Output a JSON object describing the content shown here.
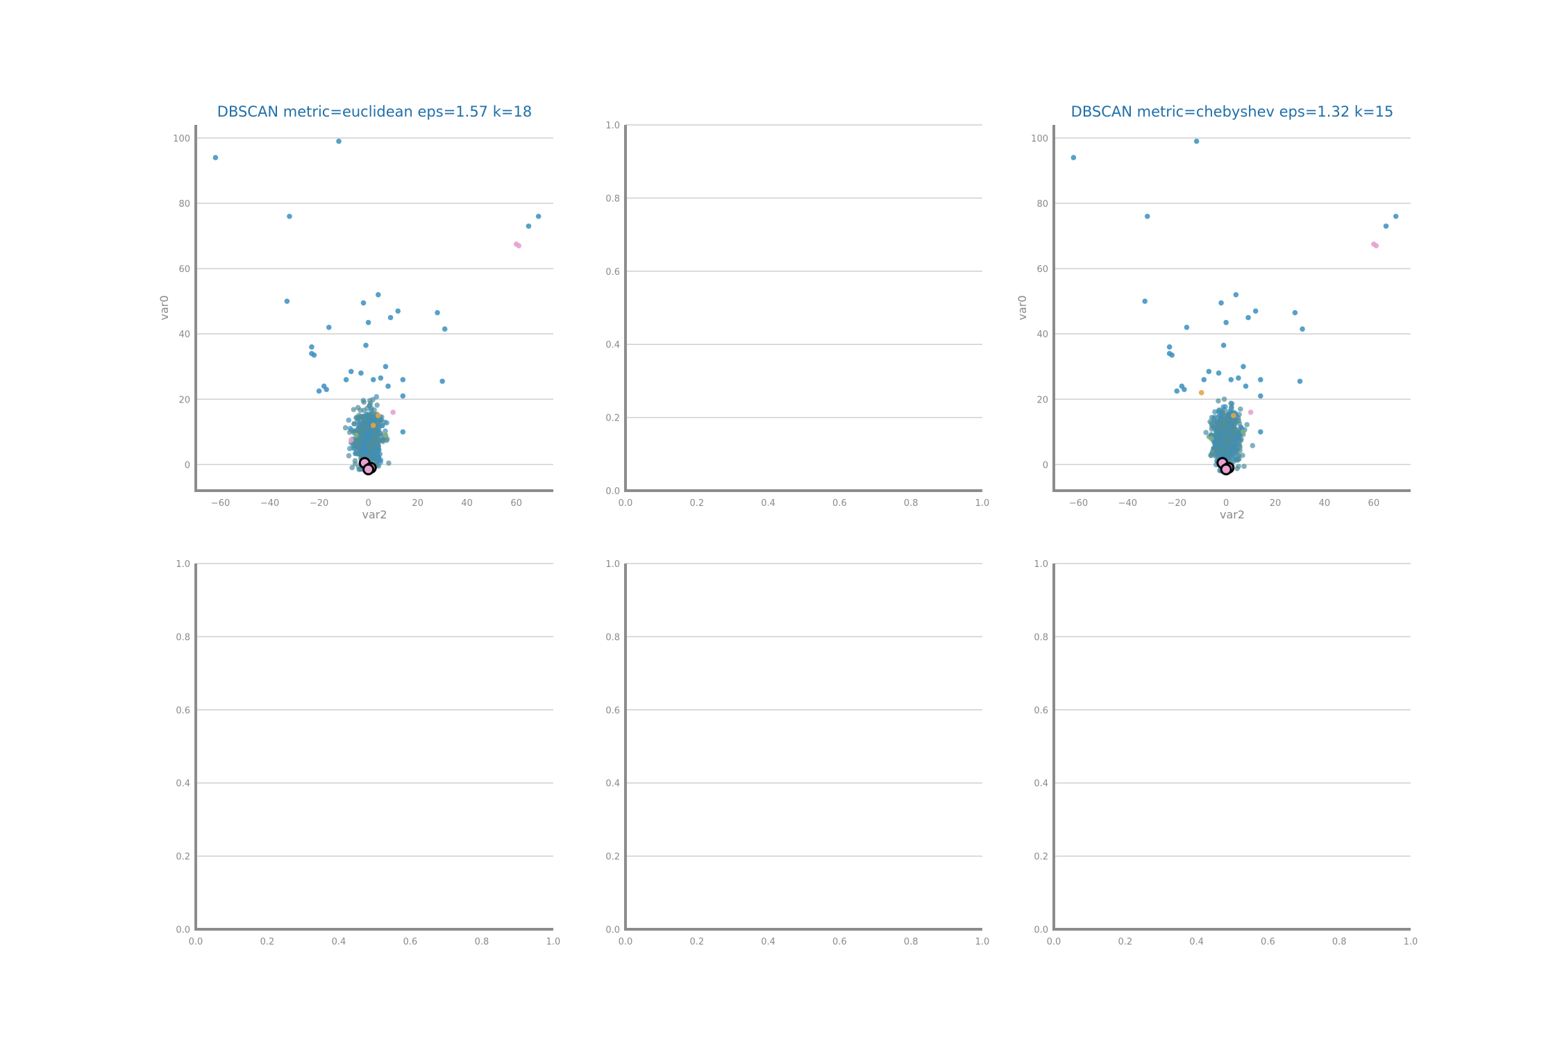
{
  "colors": {
    "title": "#1f6fa8",
    "axis": "#8c8c8c",
    "grid": "#cfcfcf",
    "tick_text": "#8a8a8a",
    "point_main": "#3b8fbf",
    "point_teal": "#4f8f9c",
    "point_pink": "#e7a1d2",
    "point_orange": "#e0a54a",
    "point_green": "#7fae7a",
    "centroid_fill": "#e7a1d2",
    "centroid_edge": "#000000"
  },
  "chart_data": [
    {
      "type": "scatter",
      "title": "DBSCAN metric=euclidean eps=1.57 k=18",
      "xlabel": "var2",
      "ylabel": "var0",
      "xlim": [
        -70,
        75
      ],
      "ylim": [
        -8,
        104
      ],
      "xticks": [
        -60,
        -40,
        -20,
        0,
        20,
        40,
        60
      ],
      "yticks": [
        0,
        20,
        40,
        60,
        80,
        100
      ],
      "grid": "horizontal",
      "outliers": [
        {
          "x": -62,
          "y": 94
        },
        {
          "x": -12,
          "y": 99
        },
        {
          "x": -32,
          "y": 76
        },
        {
          "x": -33,
          "y": 50
        },
        {
          "x": -16,
          "y": 42
        },
        {
          "x": -23,
          "y": 36
        },
        {
          "x": -23,
          "y": 34
        },
        {
          "x": -22,
          "y": 33.5
        },
        {
          "x": -2,
          "y": 49.5
        },
        {
          "x": 4,
          "y": 52
        },
        {
          "x": 0,
          "y": 43.5
        },
        {
          "x": 9,
          "y": 45
        },
        {
          "x": 12,
          "y": 47
        },
        {
          "x": -1,
          "y": 36.5
        },
        {
          "x": 28,
          "y": 46.5
        },
        {
          "x": 31,
          "y": 41.5
        },
        {
          "x": 30,
          "y": 25.5
        },
        {
          "x": 65,
          "y": 73
        },
        {
          "x": 69,
          "y": 76
        },
        {
          "x": 7,
          "y": 30
        },
        {
          "x": 14,
          "y": 26
        },
        {
          "x": 14,
          "y": 21
        },
        {
          "x": 14,
          "y": 10
        },
        {
          "x": -18,
          "y": 24
        },
        {
          "x": -17,
          "y": 23
        },
        {
          "x": -20,
          "y": 22.5
        },
        {
          "x": -9,
          "y": 26
        },
        {
          "x": -7,
          "y": 28.5
        },
        {
          "x": -3,
          "y": 28
        },
        {
          "x": 2,
          "y": 26
        },
        {
          "x": 5,
          "y": 26.5
        },
        {
          "x": 8,
          "y": 24
        }
      ],
      "clusters": [
        {
          "color": "pink",
          "points": [
            {
              "x": 60,
              "y": 67.5
            },
            {
              "x": 61,
              "y": 67
            },
            {
              "x": 10,
              "y": 16
            },
            {
              "x": -7,
              "y": 7.5
            }
          ]
        },
        {
          "color": "orange",
          "points": [
            {
              "x": 2,
              "y": 12
            },
            {
              "x": 4,
              "y": 15
            }
          ]
        },
        {
          "color": "green",
          "points": [
            {
              "x": -5,
              "y": 9
            },
            {
              "x": 7,
              "y": 9
            }
          ]
        }
      ],
      "main_cluster": {
        "center": [
          0,
          8
        ],
        "spread": [
          5,
          6
        ]
      },
      "centroids": [
        {
          "x": -1.5,
          "y": 0.5
        },
        {
          "x": 1,
          "y": -1
        },
        {
          "x": 0,
          "y": -1.5
        }
      ]
    },
    {
      "type": "scatter",
      "title": "",
      "xlabel": "",
      "ylabel": "",
      "xlim": [
        0,
        1
      ],
      "ylim": [
        0,
        1
      ],
      "xticks": [
        0.0,
        0.2,
        0.4,
        0.6,
        0.8,
        1.0
      ],
      "yticks": [
        0.0,
        0.2,
        0.4,
        0.6,
        0.8,
        1.0
      ],
      "grid": "horizontal"
    },
    {
      "type": "scatter",
      "title": "DBSCAN metric=chebyshev eps=1.32 k=15",
      "xlabel": "var2",
      "ylabel": "var0",
      "xlim": [
        -70,
        75
      ],
      "ylim": [
        -8,
        104
      ],
      "xticks": [
        -60,
        -40,
        -20,
        0,
        20,
        40,
        60
      ],
      "yticks": [
        0,
        20,
        40,
        60,
        80,
        100
      ],
      "grid": "horizontal",
      "outliers": [
        {
          "x": -62,
          "y": 94
        },
        {
          "x": -12,
          "y": 99
        },
        {
          "x": -32,
          "y": 76
        },
        {
          "x": -33,
          "y": 50
        },
        {
          "x": -16,
          "y": 42
        },
        {
          "x": -23,
          "y": 36
        },
        {
          "x": -23,
          "y": 34
        },
        {
          "x": -22,
          "y": 33.5
        },
        {
          "x": -2,
          "y": 49.5
        },
        {
          "x": 4,
          "y": 52
        },
        {
          "x": 0,
          "y": 43.5
        },
        {
          "x": 9,
          "y": 45
        },
        {
          "x": 12,
          "y": 47
        },
        {
          "x": -1,
          "y": 36.5
        },
        {
          "x": 28,
          "y": 46.5
        },
        {
          "x": 31,
          "y": 41.5
        },
        {
          "x": 30,
          "y": 25.5
        },
        {
          "x": 65,
          "y": 73
        },
        {
          "x": 69,
          "y": 76
        },
        {
          "x": 7,
          "y": 30
        },
        {
          "x": 14,
          "y": 26
        },
        {
          "x": 14,
          "y": 21
        },
        {
          "x": 14,
          "y": 10
        },
        {
          "x": -18,
          "y": 24
        },
        {
          "x": -17,
          "y": 23
        },
        {
          "x": -20,
          "y": 22.5
        },
        {
          "x": -9,
          "y": 26
        },
        {
          "x": -7,
          "y": 28.5
        },
        {
          "x": -3,
          "y": 28
        },
        {
          "x": 2,
          "y": 26
        },
        {
          "x": 5,
          "y": 26.5
        },
        {
          "x": 8,
          "y": 24
        }
      ],
      "clusters": [
        {
          "color": "pink",
          "points": [
            {
              "x": 60,
              "y": 67.5
            },
            {
              "x": 61,
              "y": 67
            },
            {
              "x": 10,
              "y": 16
            }
          ]
        },
        {
          "color": "orange",
          "points": [
            {
              "x": -10,
              "y": 22
            },
            {
              "x": 3,
              "y": 15
            }
          ]
        },
        {
          "color": "green",
          "points": [
            {
              "x": 7,
              "y": 10
            },
            {
              "x": -6,
              "y": 8
            }
          ]
        }
      ],
      "main_cluster": {
        "center": [
          0,
          8
        ],
        "spread": [
          5,
          6
        ]
      },
      "centroids": [
        {
          "x": -1.5,
          "y": 0.5
        },
        {
          "x": 1,
          "y": -1
        },
        {
          "x": 0,
          "y": -1.5
        }
      ]
    },
    {
      "type": "scatter",
      "title": "",
      "xlabel": "",
      "ylabel": "",
      "xlim": [
        0,
        1
      ],
      "ylim": [
        0,
        1
      ],
      "xticks": [
        0.0,
        0.2,
        0.4,
        0.6,
        0.8,
        1.0
      ],
      "yticks": [
        0.0,
        0.2,
        0.4,
        0.6,
        0.8,
        1.0
      ],
      "grid": "horizontal"
    },
    {
      "type": "scatter",
      "title": "",
      "xlabel": "",
      "ylabel": "",
      "xlim": [
        0,
        1
      ],
      "ylim": [
        0,
        1
      ],
      "xticks": [
        0.0,
        0.2,
        0.4,
        0.6,
        0.8,
        1.0
      ],
      "yticks": [
        0.0,
        0.2,
        0.4,
        0.6,
        0.8,
        1.0
      ],
      "grid": "horizontal"
    },
    {
      "type": "scatter",
      "title": "",
      "xlabel": "",
      "ylabel": "",
      "xlim": [
        0,
        1
      ],
      "ylim": [
        0,
        1
      ],
      "xticks": [
        0.0,
        0.2,
        0.4,
        0.6,
        0.8,
        1.0
      ],
      "yticks": [
        0.0,
        0.2,
        0.4,
        0.6,
        0.8,
        1.0
      ],
      "grid": "horizontal"
    }
  ]
}
